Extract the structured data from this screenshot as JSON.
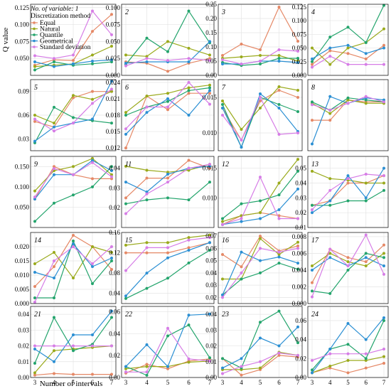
{
  "chart_data": {
    "type": "line",
    "xlabel": "Number of intervals",
    "ylabel": "Q value",
    "x": [
      3,
      4,
      5,
      6,
      7
    ],
    "legend": {
      "title_line1": "No. of variable: 1",
      "title_line2": "Discretization method",
      "position": "top-left"
    },
    "series_styles": [
      {
        "name": "Equal",
        "color": "#E58866"
      },
      {
        "name": "Natural",
        "color": "#9AAA1C"
      },
      {
        "name": "Quantile",
        "color": "#23A46C"
      },
      {
        "name": "Geometrical",
        "color": "#2B8FD3"
      },
      {
        "name": "Standard deviation",
        "color": "#D67DE6"
      }
    ],
    "panels": [
      {
        "label": "",
        "ylim": [
          0.025,
          0.13
        ],
        "yticks": [
          "0.050",
          "0.075",
          "0.100",
          "0.125"
        ],
        "series": [
          [
            0.04,
            0.048,
            0.047,
            0.09,
            0.115
          ],
          [
            0.038,
            0.04,
            0.042,
            0.055,
            0.068
          ],
          [
            0.033,
            0.045,
            0.04,
            0.042,
            0.045
          ],
          [
            0.045,
            0.038,
            0.042,
            0.046,
            0.048
          ],
          [
            0.054,
            0.05,
            0.055,
            0.12,
            0.085
          ]
        ]
      },
      {
        "label": "2",
        "ylim": [
          0.0,
          0.105
        ],
        "yticks": [
          "0.000",
          "0.025",
          "0.050",
          "0.075",
          "0.100"
        ],
        "series": [
          [
            0.02,
            0.018,
            0.006,
            0.018,
            0.025
          ],
          [
            0.03,
            0.028,
            0.05,
            0.04,
            0.03
          ],
          [
            0.016,
            0.055,
            0.035,
            0.095,
            0.048
          ],
          [
            0.018,
            0.02,
            0.02,
            0.02,
            0.05
          ],
          [
            0.014,
            0.025,
            0.022,
            0.025,
            0.022
          ]
        ]
      },
      {
        "label": "3",
        "ylim": [
          0.0,
          0.25
        ],
        "yticks": [
          "0.00",
          "0.05",
          "0.10",
          "0.15",
          "0.20",
          "0.25"
        ],
        "series": [
          [
            0.07,
            0.11,
            0.09,
            0.24,
            0.12
          ],
          [
            0.06,
            0.065,
            0.07,
            0.07,
            0.05
          ],
          [
            0.045,
            0.035,
            0.04,
            0.06,
            0.06
          ],
          [
            0.04,
            0.04,
            0.05,
            0.05,
            0.045
          ],
          [
            0.055,
            0.04,
            0.05,
            0.09,
            0.085
          ]
        ]
      },
      {
        "label": "4",
        "ylim": [
          0.0,
          0.13
        ],
        "yticks": [
          "0.000",
          "0.025",
          "0.050",
          "0.075",
          "0.100",
          "0.125"
        ],
        "series": [
          [
            0.02,
            0.045,
            0.04,
            0.03,
            0.055
          ],
          [
            0.05,
            0.02,
            0.05,
            0.06,
            0.085
          ],
          [
            0.025,
            0.07,
            0.088,
            0.06,
            0.128
          ],
          [
            0.03,
            0.05,
            0.055,
            0.04,
            0.05
          ],
          [
            0.015,
            0.035,
            0.02,
            0.02,
            0.02
          ]
        ]
      },
      {
        "label": "5",
        "ylim": [
          0.015,
          0.105
        ],
        "yticks": [
          "0.03",
          "0.06",
          "0.09"
        ],
        "series": [
          [
            0.052,
            0.045,
            0.082,
            0.09,
            0.09
          ],
          [
            0.06,
            0.05,
            0.085,
            0.08,
            0.09
          ],
          [
            0.025,
            0.07,
            0.057,
            0.053,
            0.05
          ],
          [
            0.027,
            0.045,
            0.05,
            0.055,
            0.103
          ],
          [
            0.055,
            0.04,
            0.05,
            0.075,
            0.093
          ]
        ]
      },
      {
        "label": "6",
        "ylim": [
          0.0115,
          0.0245
        ],
        "yticks": [
          "0.012",
          "0.015",
          "0.018",
          "0.021",
          "0.024"
        ],
        "series": [
          [
            0.012,
            0.0215,
            0.019,
            0.022,
            0.022
          ],
          [
            0.0185,
            0.0215,
            0.022,
            0.023,
            0.0235
          ],
          [
            0.018,
            0.0195,
            0.0205,
            0.0225,
            0.023
          ],
          [
            0.0145,
            0.0185,
            0.021,
            0.018,
            0.0225
          ],
          [
            0.0155,
            0.0195,
            0.0195,
            0.024,
            0.02
          ]
        ]
      },
      {
        "label": "7",
        "ylim": [
          0.0075,
          0.0175
        ],
        "yticks": [
          "0.010",
          "0.015"
        ],
        "series": [
          [
            0.0135,
            0.009,
            0.0145,
            0.016,
            0.015
          ],
          [
            0.0145,
            0.0105,
            0.0135,
            0.0165,
            0.016
          ],
          [
            0.014,
            0.008,
            0.015,
            0.014,
            0.013
          ],
          [
            0.0135,
            0.008,
            0.0155,
            0.0135,
            0.0102
          ],
          [
            0.0125,
            0.009,
            0.015,
            0.0098,
            0.01
          ]
        ]
      },
      {
        "label": "8",
        "ylim": [
          0.0,
          0.105
        ],
        "yticks": [],
        "series": [
          [
            0.045,
            0.045,
            0.075,
            0.072,
            0.072
          ],
          [
            0.07,
            0.055,
            0.075,
            0.07,
            0.07
          ],
          [
            0.072,
            0.06,
            0.078,
            0.075,
            0.072
          ],
          [
            0.01,
            0.08,
            0.07,
            0.078,
            0.075
          ],
          [
            0.068,
            0.06,
            0.07,
            0.08,
            0.072
          ]
        ]
      },
      {
        "label": "9",
        "ylim": [
          0.0,
          0.175
        ],
        "yticks": [
          "0.050",
          "0.100",
          "0.150"
        ],
        "series": [
          [
            0.07,
            0.15,
            0.13,
            0.12,
            0.12
          ],
          [
            0.09,
            0.14,
            0.15,
            0.17,
            0.13
          ],
          [
            0.015,
            0.06,
            0.08,
            0.1,
            0.15
          ],
          [
            0.07,
            0.13,
            0.13,
            0.165,
            0.14
          ],
          [
            0.075,
            0.145,
            0.13,
            0.16,
            0.125
          ]
        ]
      },
      {
        "label": "11",
        "ylim": [
          0.01,
          0.046
        ],
        "yticks": [
          "0.02",
          "0.03",
          "0.04"
        ],
        "series": [
          [
            0.025,
            0.035,
            0.035,
            0.044,
            0.04
          ],
          [
            0.041,
            0.039,
            0.038,
            0.039,
            0.042
          ],
          [
            0.022,
            0.024,
            0.025,
            0.024,
            0.033
          ],
          [
            0.033,
            0.028,
            0.037,
            0.04,
            0.041
          ],
          [
            0.017,
            0.027,
            0.033,
            0.04,
            0.042
          ]
        ]
      },
      {
        "label": "12",
        "ylim": [
          0.005,
          0.017
        ],
        "yticks": [
          "0.010",
          "0.015"
        ],
        "series": [
          [
            0.0055,
            0.007,
            0.0075,
            0.007,
            0.0065
          ],
          [
            0.006,
            0.007,
            0.0075,
            0.0125,
            0.0165
          ],
          [
            0.0065,
            0.009,
            0.0095,
            0.0105,
            0.0145
          ],
          [
            0.0055,
            0.006,
            0.0065,
            0.008,
            0.0115
          ],
          [
            0.0055,
            0.0065,
            0.0135,
            0.0065,
            0.0065
          ]
        ]
      },
      {
        "label": "13",
        "ylim": [
          0.01,
          0.058
        ],
        "yticks": [
          "0.01",
          "0.02",
          "0.03",
          "0.04",
          "0.05"
        ],
        "series": [
          [
            0.025,
            0.028,
            0.04,
            0.04,
            0.045
          ],
          [
            0.048,
            0.043,
            0.042,
            0.04,
            0.04
          ],
          [
            0.025,
            0.025,
            0.028,
            0.028,
            0.035
          ],
          [
            0.02,
            0.028,
            0.045,
            0.03,
            0.05
          ],
          [
            0.022,
            0.035,
            0.043,
            0.046,
            0.045
          ]
        ]
      },
      {
        "label": "14",
        "ylim": [
          0.0,
          0.025
        ],
        "yticks": [
          "0.000",
          "0.005",
          "0.010",
          "0.015",
          "0.020"
        ],
        "series": [
          [
            0.006,
            0.013,
            0.024,
            0.02,
            0.012
          ],
          [
            0.014,
            0.018,
            0.009,
            0.02,
            0.018
          ],
          [
            0.002,
            0.002,
            0.022,
            0.007,
            0.015
          ],
          [
            0.011,
            0.009,
            0.021,
            0.013,
            0.016
          ],
          [
            0.0005,
            0.015,
            0.02,
            0.014,
            0.02
          ]
        ]
      },
      {
        "label": "15",
        "ylim": [
          0.02,
          0.16
        ],
        "yticks": [
          "0.04",
          "0.08",
          "0.12",
          "0.16"
        ],
        "series": [
          [
            0.12,
            0.12,
            0.12,
            0.13,
            0.14
          ],
          [
            0.135,
            0.14,
            0.14,
            0.15,
            0.155
          ],
          [
            0.03,
            0.05,
            0.07,
            0.1,
            0.125
          ],
          [
            0.035,
            0.08,
            0.11,
            0.125,
            0.14
          ],
          [
            0.085,
            0.13,
            0.13,
            0.145,
            0.15
          ]
        ]
      },
      {
        "label": "16",
        "ylim": [
          0.015,
          0.073
        ],
        "yticks": [
          "0.02",
          "0.03",
          "0.04",
          "0.05",
          "0.06",
          "0.07"
        ],
        "series": [
          [
            0.055,
            0.045,
            0.07,
            0.058,
            0.062
          ],
          [
            0.035,
            0.035,
            0.068,
            0.055,
            0.065
          ],
          [
            0.022,
            0.035,
            0.04,
            0.048,
            0.043
          ],
          [
            0.022,
            0.057,
            0.05,
            0.053,
            0.048
          ],
          [
            0.02,
            0.04,
            0.06,
            0.057,
            0.06
          ]
        ]
      },
      {
        "label": "17",
        "ylim": [
          0.0,
          0.0085
        ],
        "yticks": [
          "0.000",
          "0.002",
          "0.004",
          "0.006",
          "0.008"
        ],
        "series": [
          [
            0.0025,
            0.0065,
            0.0055,
            0.005,
            0.007
          ],
          [
            0.0045,
            0.006,
            0.005,
            0.0045,
            0.006
          ],
          [
            0.0015,
            0.0012,
            0.004,
            0.006,
            0.0055
          ],
          [
            0.004,
            0.0055,
            0.0045,
            0.0055,
            0.0045
          ],
          [
            0.0008,
            0.0065,
            0.0045,
            0.0082,
            0.0035
          ]
        ]
      },
      {
        "label": "21",
        "ylim": [
          0.0,
          0.045
        ],
        "yticks": [
          "0.00",
          "0.01",
          "0.02",
          "0.03",
          "0.04"
        ],
        "series": [
          [
            0.0015,
            0.0025,
            0.002,
            0.002,
            0.002
          ],
          [
            0.003,
            0.017,
            0.018,
            0.019,
            0.02
          ],
          [
            0.009,
            0.038,
            0.017,
            0.021,
            0.038
          ],
          [
            0.018,
            0.01,
            0.027,
            0.027,
            0.042
          ],
          [
            0.02,
            0.02,
            0.02,
            0.02,
            0.02
          ]
        ]
      },
      {
        "label": "22",
        "ylim": [
          0.0,
          0.065
        ],
        "yticks": [
          "0.00",
          "0.02",
          "0.04",
          "0.06"
        ],
        "series": [
          [
            0.004,
            0.012,
            0.008,
            0.015,
            0.017
          ],
          [
            0.008,
            0.01,
            0.01,
            0.014,
            0.015
          ],
          [
            0.01,
            0.002,
            0.038,
            0.048,
            0.018
          ],
          [
            0.01,
            0.03,
            0.01,
            0.057,
            0.058
          ],
          [
            0.005,
            0.005,
            0.045,
            0.017,
            0.015
          ]
        ]
      },
      {
        "label": "23",
        "ylim": [
          0.0,
          0.045
        ],
        "yticks": [
          "0.00",
          "0.01",
          "0.02",
          "0.03",
          "0.04"
        ],
        "series": [
          [
            0.012,
            0.0015,
            0.005,
            0.014,
            0.013
          ],
          [
            0.005,
            0.005,
            0.006,
            0.016,
            0.014
          ],
          [
            0.012,
            0.006,
            0.035,
            0.042,
            0.022
          ],
          [
            0.006,
            0.012,
            0.025,
            0.02,
            0.032
          ],
          [
            0.0025,
            0.007,
            0.01,
            0.0155,
            0.014
          ]
        ]
      },
      {
        "label": "24",
        "ylim": [
          0.0,
          0.075
        ],
        "yticks": [
          "0.00",
          "0.02",
          "0.04",
          "0.06"
        ],
        "series": [
          [
            0.005,
            0.01,
            0.005,
            0.01,
            0.015
          ],
          [
            0.005,
            0.012,
            0.018,
            0.018,
            0.022
          ],
          [
            0.008,
            0.03,
            0.035,
            0.02,
            0.06
          ],
          [
            0.005,
            0.03,
            0.057,
            0.04,
            0.063
          ],
          [
            0.018,
            0.025,
            0.025,
            0.025,
            0.03
          ]
        ]
      }
    ]
  }
}
